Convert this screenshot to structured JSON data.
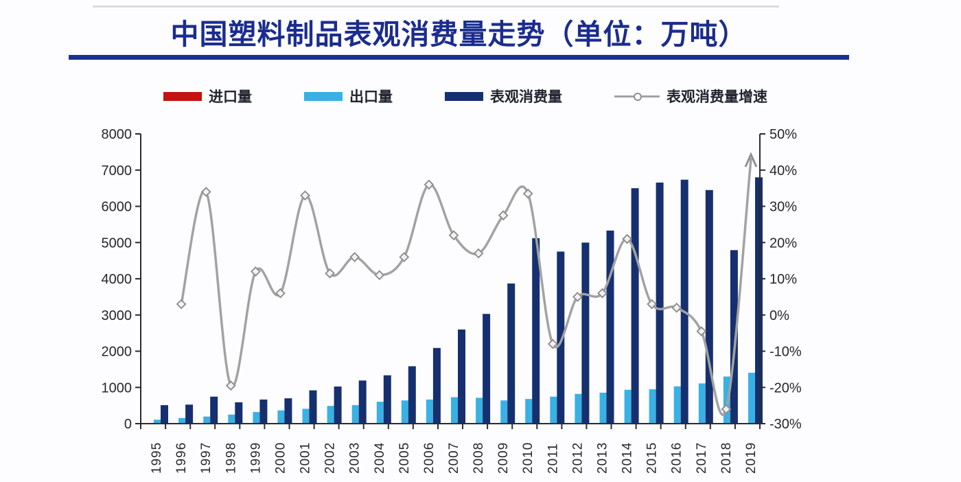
{
  "page": {
    "background": "#fdfdff",
    "top_rule_color": "#cbcbcb"
  },
  "header": {
    "title": "中国塑料制品表观消费量走势（单位：万吨）",
    "title_color": "#1b2c8f",
    "underline_color": "#1c3191"
  },
  "legend": {
    "position": "top",
    "items": [
      {
        "label": "进口量",
        "swatch": "bar",
        "color": "#c41212"
      },
      {
        "label": "出口量",
        "swatch": "bar",
        "color": "#39b1e4"
      },
      {
        "label": "表观消费量",
        "swatch": "bar",
        "color": "#16306f"
      },
      {
        "label": "表观消费量增速",
        "swatch": "line-marker",
        "color": "#a2a2a2"
      }
    ]
  },
  "chart_data": {
    "type": "combo bar + line",
    "title": "中国塑料制品表观消费量走势（单位：万吨）",
    "categories": [
      "1995",
      "1996",
      "1997",
      "1998",
      "1999",
      "2000",
      "2001",
      "2002",
      "2003",
      "2004",
      "2005",
      "2006",
      "2007",
      "2008",
      "2009",
      "2010",
      "2011",
      "2012",
      "2013",
      "2014",
      "2015",
      "2016",
      "2017",
      "2018",
      "2019"
    ],
    "series": [
      {
        "name": "进口量",
        "chart": "bar",
        "axis": "left",
        "color": "#c41212",
        "values": null,
        "note": "legend entry shown; bars too small to be visible at chart scale"
      },
      {
        "name": "出口量",
        "chart": "bar",
        "axis": "left",
        "color": "#39b1e4",
        "values": [
          110,
          155,
          195,
          250,
          320,
          365,
          410,
          490,
          510,
          605,
          640,
          665,
          730,
          715,
          640,
          680,
          745,
          820,
          855,
          935,
          950,
          1030,
          1110,
          1300,
          1405
        ]
      },
      {
        "name": "表观消费量",
        "chart": "bar",
        "axis": "left",
        "color": "#16306f",
        "values": [
          510,
          525,
          745,
          590,
          665,
          700,
          920,
          1025,
          1190,
          1335,
          1585,
          2090,
          2600,
          3030,
          3870,
          5120,
          4750,
          5000,
          5330,
          6500,
          6655,
          6735,
          6450,
          4790,
          6800
        ]
      },
      {
        "name": "表观消费量增速",
        "chart": "line",
        "axis": "right",
        "unit": "%",
        "color": "#a2a2a2",
        "marker": "open-diamond",
        "line_end": "arrow-up",
        "values": [
          null,
          3,
          34,
          -19.5,
          12,
          6,
          33,
          11.5,
          16,
          11,
          16,
          36,
          22,
          17,
          27.5,
          33.5,
          -8,
          5,
          6,
          21,
          3,
          2,
          -4.5,
          -26,
          43
        ]
      }
    ],
    "left_axis": {
      "min": 0,
      "max": 8000,
      "step": 1000,
      "tick_labels": [
        "0",
        "1000",
        "2000",
        "3000",
        "4000",
        "5000",
        "6000",
        "7000",
        "8000"
      ]
    },
    "right_axis": {
      "min": -30,
      "max": 50,
      "step": 10,
      "suffix": "%",
      "tick_labels": [
        "-30%",
        "-20%",
        "-10%",
        "0%",
        "10%",
        "20%",
        "30%",
        "40%",
        "50%"
      ]
    },
    "x_tick_rotation": -90,
    "grid": false,
    "legend_position": "top",
    "axis_color": "#2b2b2b",
    "tick_label_color": "#26262b"
  }
}
